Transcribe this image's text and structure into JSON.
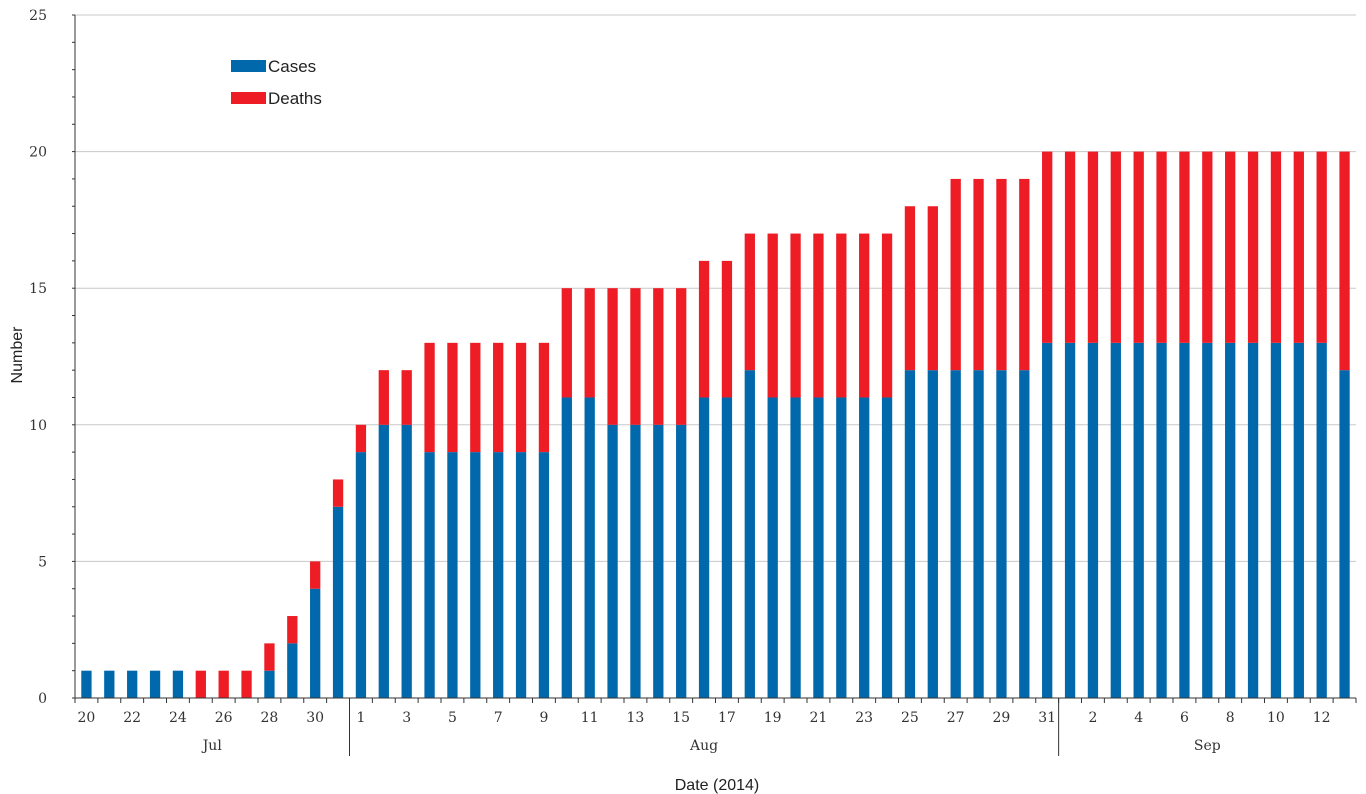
{
  "chart_data": {
    "type": "bar",
    "stacked": true,
    "ylabel": "Number",
    "xlabel": "Date (2014)",
    "ylim": [
      0,
      25
    ],
    "yticks": [
      0,
      5,
      10,
      15,
      20,
      25
    ],
    "grid": true,
    "legend_position": "top-left",
    "colors": {
      "cases": "#0068ab",
      "deaths": "#ee1c25"
    },
    "categories": [
      "20",
      "21",
      "22",
      "23",
      "24",
      "25",
      "26",
      "27",
      "28",
      "29",
      "30",
      "31",
      "1",
      "2",
      "3",
      "4",
      "5",
      "6",
      "7",
      "8",
      "9",
      "10",
      "11",
      "12",
      "13",
      "14",
      "15",
      "16",
      "17",
      "18",
      "19",
      "20",
      "21",
      "22",
      "23",
      "24",
      "25",
      "26",
      "27",
      "28",
      "29",
      "30",
      "31",
      "1",
      "2",
      "3",
      "4",
      "5",
      "6",
      "7",
      "8",
      "9",
      "10",
      "11",
      "12",
      "13"
    ],
    "x_tick_labels": [
      "20",
      "22",
      "24",
      "26",
      "28",
      "30",
      "1",
      "3",
      "5",
      "7",
      "9",
      "11",
      "13",
      "15",
      "17",
      "19",
      "21",
      "23",
      "25",
      "27",
      "29",
      "31",
      "2",
      "4",
      "6",
      "8",
      "10",
      "12"
    ],
    "month_labels": [
      "Jul",
      "Aug",
      "Sep"
    ],
    "series": [
      {
        "name": "Cases",
        "values": [
          1,
          1,
          1,
          1,
          1,
          0,
          0,
          0,
          1,
          2,
          4,
          7,
          9,
          10,
          10,
          9,
          9,
          9,
          9,
          9,
          9,
          11,
          11,
          10,
          10,
          10,
          10,
          11,
          11,
          12,
          11,
          11,
          11,
          11,
          11,
          11,
          12,
          12,
          12,
          12,
          12,
          12,
          13,
          13,
          13,
          13,
          13,
          13,
          13,
          13,
          13,
          13,
          13,
          13,
          13,
          12
        ]
      },
      {
        "name": "Deaths",
        "values": [
          0,
          0,
          0,
          0,
          0,
          1,
          1,
          1,
          1,
          1,
          1,
          1,
          1,
          2,
          2,
          4,
          4,
          4,
          4,
          4,
          4,
          4,
          4,
          5,
          5,
          5,
          5,
          5,
          5,
          5,
          6,
          6,
          6,
          6,
          6,
          6,
          6,
          6,
          7,
          7,
          7,
          7,
          7,
          7,
          7,
          7,
          7,
          7,
          7,
          7,
          7,
          7,
          7,
          7,
          7,
          8
        ]
      }
    ]
  }
}
